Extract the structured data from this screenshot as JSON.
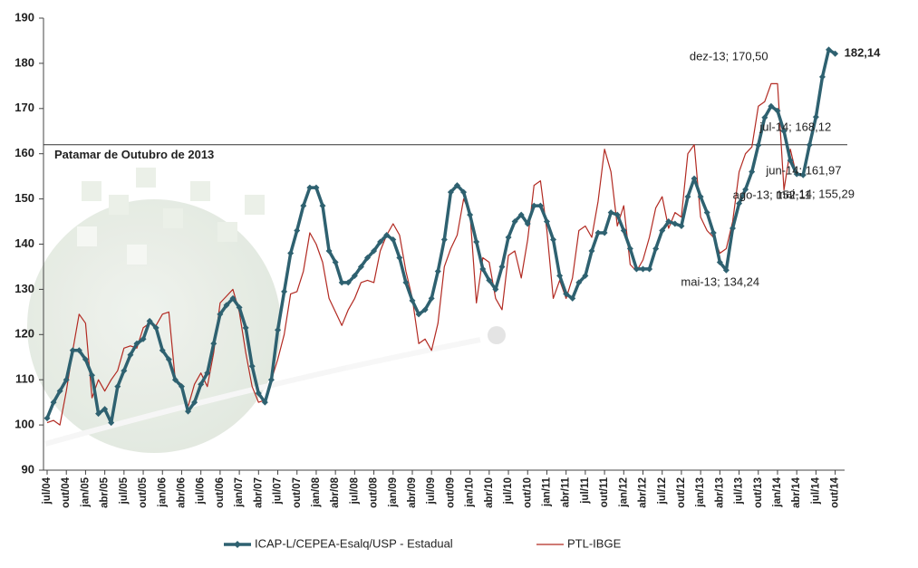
{
  "chart_data": {
    "type": "line",
    "categories": [
      "jul/04",
      null,
      null,
      "out/04",
      null,
      null,
      "jan/05",
      null,
      null,
      "abr/05",
      null,
      null,
      "jul/05",
      null,
      null,
      "out/05",
      null,
      null,
      "jan/06",
      null,
      null,
      "abr/06",
      null,
      null,
      "jul/06",
      null,
      null,
      "out/06",
      null,
      null,
      "jan/07",
      null,
      null,
      "abr/07",
      null,
      null,
      "jul/07",
      null,
      null,
      "out/07",
      null,
      null,
      "jan/08",
      null,
      null,
      "abr/08",
      null,
      null,
      "jul/08",
      null,
      null,
      "out/08",
      null,
      null,
      "jan/09",
      null,
      null,
      "abr/09",
      null,
      null,
      "jul/09",
      null,
      null,
      "out/09",
      null,
      null,
      "jan/10",
      null,
      null,
      "abr/10",
      null,
      null,
      "jul/10",
      null,
      null,
      "out/10",
      null,
      null,
      "jan/11",
      null,
      null,
      "abr/11",
      null,
      null,
      "jul/11",
      null,
      null,
      "out/11",
      null,
      null,
      "jan/12",
      null,
      null,
      "abr/12",
      null,
      null,
      "jul/12",
      null,
      null,
      "out/12",
      null,
      null,
      "jan/13",
      null,
      null,
      "abr/13",
      null,
      null,
      "jul/13",
      null,
      null,
      "out/13",
      null,
      null,
      "jan/14",
      null,
      null,
      "abr/14",
      null,
      null,
      "jul/14",
      null,
      null,
      "out/14"
    ],
    "series": [
      {
        "name": "ICAP-L/CEPEA-Esalq/USP - Estadual",
        "color": "#2e6170",
        "marker": "diamond",
        "values": [
          101.5,
          105,
          107.5,
          110,
          116.5,
          116.5,
          114.5,
          111,
          102.5,
          103.5,
          100.5,
          108.5,
          112,
          115.5,
          118,
          119,
          123,
          121.5,
          116.5,
          114.5,
          110,
          108.5,
          103,
          105,
          109,
          111.5,
          118,
          124.5,
          126.5,
          128,
          126,
          121.5,
          113,
          107,
          105,
          110,
          121,
          129.5,
          138,
          143,
          148.5,
          152.5,
          152.5,
          148.5,
          138.5,
          136,
          131.5,
          131.5,
          133,
          135,
          137,
          138.5,
          140.5,
          142,
          141,
          137,
          131.5,
          127.5,
          124.5,
          125.5,
          128,
          134,
          141,
          151.5,
          153,
          151.5,
          146.5,
          140.5,
          134.5,
          132,
          130,
          135,
          141.5,
          145,
          146.5,
          144.5,
          148.5,
          148.5,
          145,
          141,
          133,
          129,
          128,
          131.5,
          133,
          138.5,
          142.5,
          142.5,
          147,
          146.5,
          143,
          139,
          134.5,
          134.5,
          134.5,
          139,
          143,
          145,
          144.5,
          144,
          150.5,
          154.5,
          150.5,
          147,
          142.5,
          136,
          134.24,
          143.5,
          149,
          152.11,
          156,
          161.9,
          168,
          170.5,
          169.5,
          165,
          158.5,
          155.5,
          155.29,
          161.97,
          168.12,
          177,
          183,
          182.14
        ],
        "value_labels": [
          null,
          null,
          null,
          null,
          null,
          null,
          null,
          null,
          null,
          null,
          null,
          null,
          null,
          null,
          null,
          null,
          null,
          null,
          null,
          null,
          null,
          null,
          null,
          null,
          null,
          null,
          null,
          null,
          null,
          null,
          null,
          null,
          null,
          null,
          null,
          null,
          null,
          null,
          null,
          null,
          null,
          null,
          null,
          null,
          null,
          null,
          null,
          null,
          null,
          null,
          null,
          null,
          null,
          null,
          null,
          null,
          null,
          null,
          null,
          null,
          null,
          null,
          null,
          null,
          null,
          null,
          null,
          null,
          null,
          null,
          null,
          null,
          null,
          null,
          null,
          null,
          null,
          null,
          null,
          null,
          null,
          null,
          null,
          null,
          null,
          null,
          null,
          null,
          null,
          null,
          null,
          null,
          null,
          null,
          null,
          null,
          null,
          null,
          null,
          null,
          null,
          null,
          null,
          null,
          null,
          null,
          "mai-13; 134,24",
          null,
          null,
          "ago-13; 152,11",
          null,
          null,
          null,
          "dez-13; 170,50",
          null,
          null,
          null,
          null,
          "mai-14; 155,29",
          "jun-14; 161,97",
          "jul-14; 168,12",
          null,
          null,
          "182,14"
        ]
      },
      {
        "name": "PTL-IBGE",
        "color": "#b22a22",
        "marker": "none",
        "values": [
          100.5,
          101,
          100,
          107.5,
          116.5,
          124.5,
          122.5,
          106,
          110,
          107.5,
          110,
          112,
          117,
          117.5,
          117,
          121.5,
          122.5,
          122,
          124.5,
          125,
          110,
          109,
          104,
          109,
          111.5,
          108.5,
          116,
          127,
          128.5,
          130,
          125,
          116,
          108.5,
          105,
          105.5,
          110,
          114.5,
          120,
          129,
          129.5,
          134,
          142.5,
          140,
          136,
          128,
          125,
          122,
          125.5,
          128,
          131.5,
          132,
          131.5,
          138.5,
          142,
          144.5,
          142,
          134,
          128,
          118,
          119,
          116.5,
          122.5,
          135,
          139,
          142,
          150,
          147,
          127,
          137,
          136,
          128,
          125.5,
          137.5,
          138.5,
          132.5,
          141,
          153,
          154,
          143,
          128,
          132,
          128,
          132.5,
          143,
          144,
          141.5,
          149.5,
          161,
          156,
          144,
          148.5,
          135.5,
          134,
          136.5,
          141.5,
          148,
          150.5,
          143.5,
          147,
          146,
          160,
          162,
          146,
          143,
          141.5,
          138,
          139,
          145,
          156,
          160,
          161.5,
          170.5,
          171.5,
          175.5,
          175.5,
          152,
          161,
          155,
          null,
          null,
          null,
          null,
          null,
          null
        ]
      }
    ],
    "reference": {
      "value": 162,
      "label": "Patamar de Outubro de 2013"
    },
    "ylim": [
      90,
      190
    ],
    "yticks": [
      90,
      100,
      110,
      120,
      130,
      140,
      150,
      160,
      170,
      180,
      190
    ],
    "grid": false,
    "legend": "bottom"
  }
}
